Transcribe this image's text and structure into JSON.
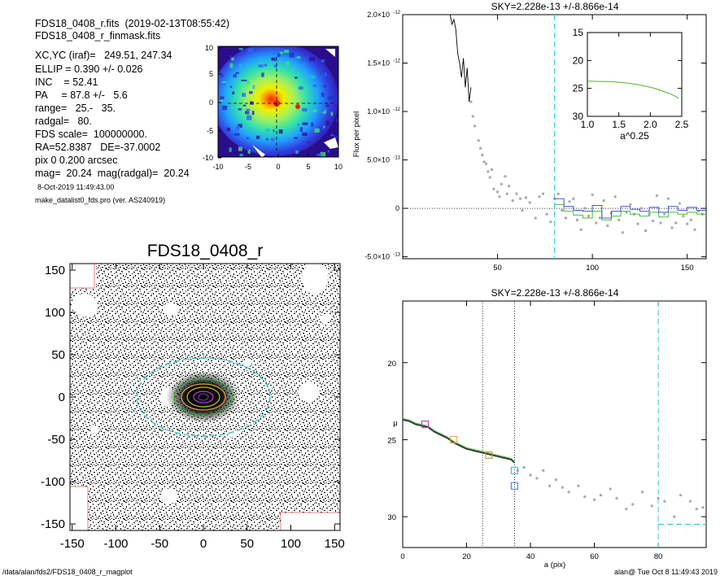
{
  "header": {
    "lines": [
      "FDS18_0408_r.fits  (2019-02-13T08:55:42)",
      "FDS18_0408_r_finmask.fits",
      "XC,YC (iraf)=   249.51, 247.34",
      "ELLIP = 0.390 +/- 0.026",
      "INC    = 52.41",
      "PA     = 87.8 +/-   5.6",
      "range=   25.-   35.",
      "radgal=   80.",
      "FDS scale=  100000000.",
      "RA=52.8387   DE=-37.0002",
      "pix 0 0.200 arcsec",
      "mag=  20.24  mag(radgal)=  20.24"
    ],
    "date": "8-Oct-2019 11:49:43.00",
    "program": "make_datalist0_fds.pro (ver. AS240919)"
  },
  "footer": {
    "path": "/data/alan/fds2/FDS18_0408_r_magplot",
    "user": "alan@  Tue Oct  8 11:49:43 2019"
  },
  "thumb": {
    "xticks": [
      "-10",
      "-5",
      "0",
      "5",
      "10"
    ],
    "yticks": [
      "10",
      "5",
      "0",
      "-5",
      "-10"
    ]
  },
  "galaxy": {
    "title": "FDS18_0408_r",
    "xticks": [
      "-150",
      "-100",
      "-50",
      "0",
      "50",
      "100",
      "150"
    ],
    "yticks": [
      "150",
      "100",
      "50",
      "0",
      "-50",
      "-100",
      "-150"
    ]
  },
  "flux_panel": {
    "title": "SKY=2.228e-13 +/-8.866e-14",
    "ylabel": "Flux per pixel",
    "yticks": [
      "2.0×10",
      "1.5×10",
      "1.0×10",
      "5.0×10",
      "0",
      "-5.0×10"
    ],
    "yexp": [
      "-12",
      "-12",
      "-12",
      "-13",
      "",
      "-13"
    ],
    "xticks": [
      "50",
      "100",
      "150"
    ],
    "inset": {
      "xlabel": "a^0.25",
      "xticks": [
        "1.0",
        "1.5",
        "2.0",
        "2.5"
      ],
      "yticks": [
        "15",
        "20",
        "25",
        "30"
      ]
    }
  },
  "mu_panel": {
    "title": "SKY=2.228e-13 +/-8.866e-14",
    "ylabel": "μ",
    "xlabel": "a (pix)",
    "yticks": [
      "20",
      "25",
      "30"
    ],
    "xticks": [
      "0",
      "20",
      "40",
      "60",
      "80"
    ]
  },
  "chart_data": [
    {
      "type": "scatter",
      "panel": "flux_profile",
      "title": "SKY=2.228e-13 +/-8.866e-14",
      "ylabel": "Flux per pixel",
      "xlim": [
        0,
        160
      ],
      "ylim": [
        -5.2e-13,
        2e-12
      ],
      "cyan_dashed_x": 80,
      "black_line": {
        "x": [
          25,
          26,
          27,
          28,
          29,
          30,
          31,
          32,
          33,
          34,
          35,
          36
        ],
        "y": [
          2e-12,
          1.9e-12,
          1.95e-12,
          1.85e-12,
          1.6e-12,
          1.5e-12,
          1.35e-12,
          1.55e-12,
          1.25e-12,
          1.45e-12,
          1.1e-12,
          1.25e-12
        ]
      },
      "gray_points": {
        "x": [
          36,
          37,
          38,
          40,
          41,
          42,
          43,
          44,
          45,
          46,
          47,
          48,
          50,
          51,
          52,
          54,
          55,
          56,
          58,
          60,
          62,
          63,
          65,
          67,
          70,
          72,
          74,
          76,
          78,
          80,
          82,
          84,
          86,
          88,
          90,
          92,
          94,
          96,
          98,
          100,
          102,
          104,
          106,
          108,
          110,
          112,
          114,
          116,
          118,
          120,
          122,
          124,
          126,
          128,
          130,
          132,
          134,
          136,
          138,
          140,
          142,
          144,
          146,
          148,
          150,
          152,
          154,
          156,
          158
        ],
        "y": [
          1.1e-12,
          9.5e-13,
          8.5e-13,
          7e-13,
          6.2e-13,
          5.5e-13,
          4.8e-13,
          4.6e-13,
          3.8e-13,
          3.2e-13,
          4e-13,
          2e-13,
          1.7e-13,
          1.2e-13,
          2.5e-13,
          3.3e-13,
          1.5e-13,
          2.3e-13,
          8e-14,
          1.5e-13,
          1e-13,
          -2e-14,
          1.1e-13,
          6e-14,
          -1e-13,
          1.2e-13,
          1.5e-13,
          -6e-14,
          -1.4e-13,
          1e-13,
          1.5e-13,
          -2e-14,
          -1e-13,
          7e-14,
          1e-13,
          -1.2e-13,
          -2.2e-13,
          0,
          -8e-14,
          1.4e-13,
          -1.5e-13,
          -1e-13,
          8e-14,
          -1.8e-13,
          -5e-14,
          1.2e-13,
          -1.2e-13,
          -2.5e-13,
          -4e-14,
          4e-14,
          -6e-14,
          -1.6e-13,
          0,
          -2.3e-13,
          -6e-14,
          -1.3e-13,
          1.3e-13,
          -1.5e-13,
          -6e-14,
          1e-13,
          -2e-13,
          -1.5e-13,
          5e-14,
          -8e-14,
          -1.6e-13,
          -1.2e-13,
          -2.2e-13,
          -3e-14,
          -6e-14
        ]
      },
      "blue_steps": {
        "x": [
          80,
          85,
          90,
          95,
          100,
          105,
          110,
          115,
          120,
          125,
          130,
          135,
          140,
          145,
          150,
          155,
          160
        ],
        "y": [
          1e-13,
          2e-14,
          -2e-14,
          -3e-14,
          3e-14,
          -1e-13,
          -3e-14,
          2e-14,
          -1e-14,
          -3e-14,
          1e-14,
          -4e-14,
          2e-14,
          -2e-14,
          1e-14,
          -2e-14,
          0
        ]
      },
      "green_steps": {
        "x": [
          80,
          85,
          90,
          95,
          100,
          105,
          110,
          115,
          120,
          125,
          130,
          135,
          140,
          145,
          150,
          155,
          160
        ],
        "y": [
          4e-14,
          -3e-14,
          -7e-14,
          -1e-13,
          -3e-14,
          -1.2e-13,
          -8e-14,
          -3e-14,
          -6e-14,
          -8e-14,
          -4e-14,
          -9e-14,
          -4e-14,
          -6e-14,
          -4e-14,
          -6e-14,
          -5e-14
        ]
      },
      "inset": {
        "xlim": [
          1.0,
          2.5
        ],
        "ylim": [
          30,
          15
        ],
        "green_line": {
          "x": [
            1.0,
            1.2,
            1.4,
            1.6,
            1.8,
            2.0,
            2.1,
            2.2,
            2.3,
            2.4,
            2.45
          ],
          "y": [
            23.7,
            23.75,
            23.8,
            24.0,
            24.3,
            24.8,
            25.1,
            25.5,
            25.9,
            26.4,
            26.8
          ]
        }
      }
    },
    {
      "type": "scatter",
      "panel": "surface_brightness",
      "title": "SKY=2.228e-13 +/-8.866e-14",
      "xlabel": "a (pix)",
      "ylabel": "μ",
      "xlim": [
        0,
        95
      ],
      "ylim": [
        32,
        16
      ],
      "dotted_x": [
        25,
        35
      ],
      "cyan_dashed_x": 80,
      "cyan_dashed_y": 30.5,
      "profile_line": {
        "x": [
          0,
          2,
          4,
          6,
          8,
          10,
          12,
          14,
          16,
          18,
          20,
          22,
          24,
          26,
          28,
          30,
          32,
          34,
          35
        ],
        "y": [
          23.7,
          23.8,
          24.0,
          24.1,
          24.2,
          24.5,
          24.7,
          24.9,
          25.2,
          25.4,
          25.6,
          25.7,
          25.8,
          25.9,
          26.0,
          26.1,
          26.2,
          26.3,
          26.5
        ]
      },
      "gray_points": {
        "x": [
          36,
          38,
          40,
          42,
          44,
          46,
          48,
          50,
          52,
          55,
          57,
          60,
          62,
          65,
          67,
          70,
          72,
          75,
          78,
          80,
          82,
          85,
          87,
          90,
          92,
          94
        ],
        "y": [
          27.0,
          26.8,
          27.3,
          27.5,
          27.0,
          28.0,
          27.6,
          28.1,
          28.4,
          28.0,
          28.7,
          28.9,
          28.6,
          28.2,
          28.8,
          29.5,
          29.2,
          28.4,
          29.3,
          28.8,
          29.0,
          30.0,
          28.6,
          29.0,
          29.5,
          29.4
        ]
      },
      "markers": [
        {
          "x": 7,
          "y": 24.0,
          "color": "#c040c0"
        },
        {
          "x": 16,
          "y": 25.0,
          "color": "#f0a040"
        },
        {
          "x": 27,
          "y": 26.0,
          "color": "#b8a040"
        },
        {
          "x": 35,
          "y": 27.0,
          "color": "#30c0c0"
        },
        {
          "x": 35,
          "y": 28.0,
          "color": "#4080ff"
        }
      ]
    }
  ]
}
